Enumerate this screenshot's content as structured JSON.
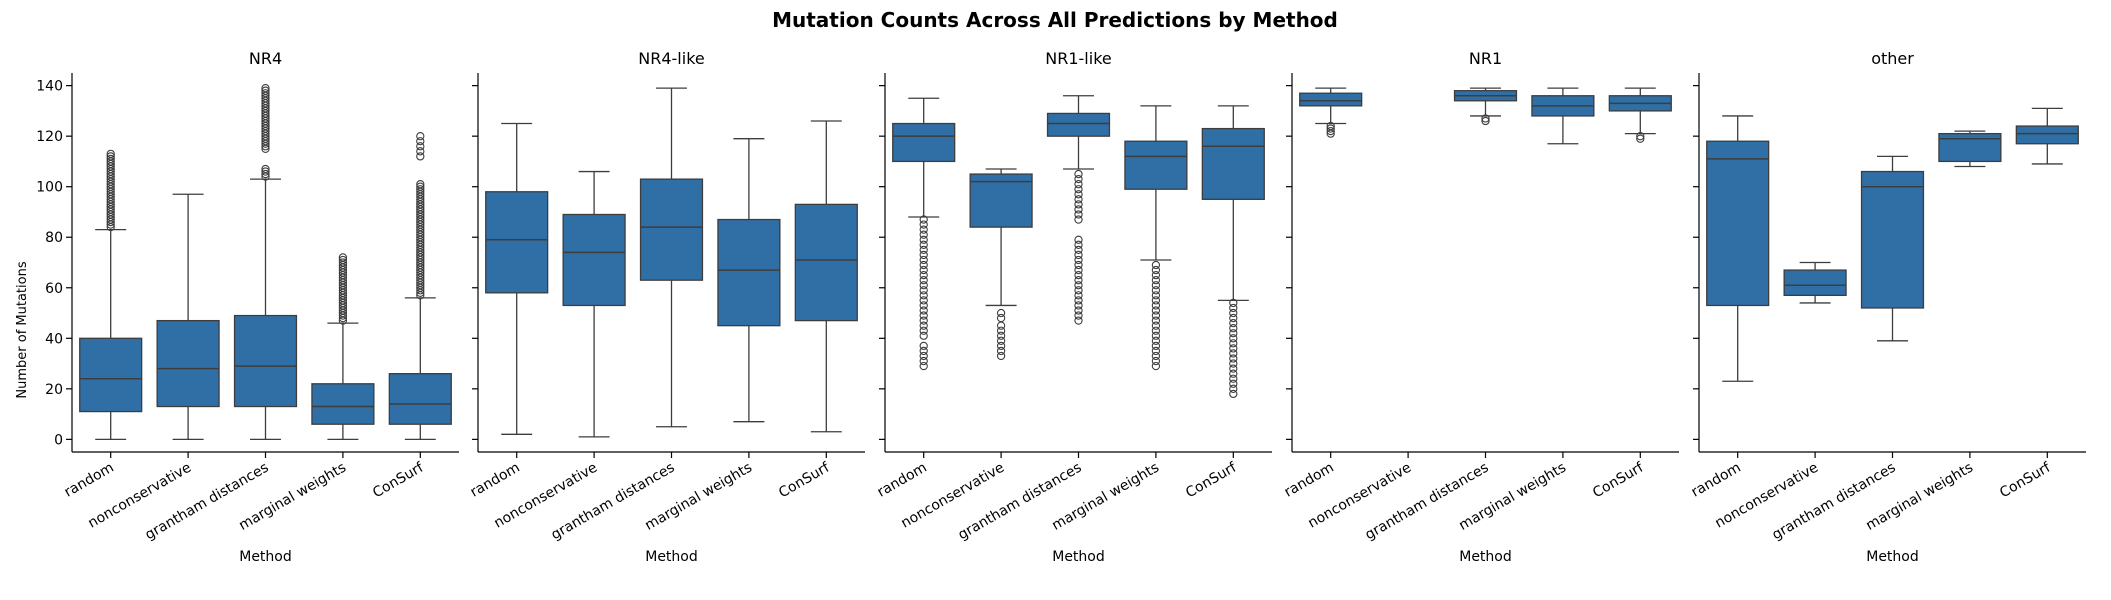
{
  "figure": {
    "title": "Mutation Counts Across All Predictions by Method",
    "ylabel": "Number of Mutations",
    "xlabel": "Method",
    "box_color": "#2f6fa6",
    "line_color": "#3d3d3d"
  },
  "chart_data": [
    {
      "type": "box",
      "title": "NR4",
      "xlabel": "Method",
      "ylabel": "Number of Mutations",
      "categories": [
        "random",
        "nonconservative",
        "grantham distances",
        "marginal weights",
        "ConSurf"
      ],
      "ylim": [
        -5,
        145
      ],
      "yticks": [
        0,
        20,
        40,
        60,
        80,
        100,
        120,
        140
      ],
      "boxes": [
        {
          "whislo": 0,
          "q1": 11,
          "med": 24,
          "q3": 40,
          "whishi": 83,
          "fliers": [
            84,
            85,
            86,
            87,
            88,
            89,
            90,
            91,
            92,
            93,
            94,
            95,
            96,
            97,
            98,
            99,
            100,
            101,
            102,
            103,
            104,
            105,
            106,
            107,
            108,
            109,
            110,
            111,
            112,
            113
          ]
        },
        {
          "whislo": 0,
          "q1": 13,
          "med": 28,
          "q3": 47,
          "whishi": 97,
          "fliers": []
        },
        {
          "whislo": 0,
          "q1": 13,
          "med": 29,
          "q3": 49,
          "whishi": 103,
          "fliers": [
            104,
            105,
            106,
            107,
            115,
            116,
            117,
            118,
            119,
            120,
            121,
            122,
            123,
            124,
            125,
            126,
            127,
            128,
            129,
            130,
            131,
            132,
            133,
            134,
            135,
            136,
            137,
            138,
            139
          ]
        },
        {
          "whislo": 0,
          "q1": 6,
          "med": 13,
          "q3": 22,
          "whishi": 46,
          "fliers": [
            47,
            48,
            49,
            50,
            51,
            52,
            53,
            54,
            55,
            56,
            57,
            58,
            59,
            60,
            61,
            62,
            63,
            64,
            65,
            66,
            67,
            68,
            69,
            70,
            71,
            72
          ]
        },
        {
          "whislo": 0,
          "q1": 6,
          "med": 14,
          "q3": 26,
          "whishi": 56,
          "fliers": [
            57,
            58,
            59,
            60,
            61,
            62,
            63,
            64,
            65,
            66,
            67,
            68,
            69,
            70,
            71,
            72,
            73,
            74,
            75,
            76,
            77,
            78,
            79,
            80,
            81,
            82,
            83,
            84,
            85,
            86,
            87,
            88,
            89,
            90,
            91,
            92,
            93,
            94,
            95,
            96,
            97,
            98,
            99,
            100,
            101,
            112,
            114,
            116,
            118,
            120
          ]
        }
      ]
    },
    {
      "type": "box",
      "title": "NR4-like",
      "xlabel": "Method",
      "categories": [
        "random",
        "nonconservative",
        "grantham distances",
        "marginal weights",
        "ConSurf"
      ],
      "ylim": [
        -5,
        145
      ],
      "yticks": [
        0,
        20,
        40,
        60,
        80,
        100,
        120,
        140
      ],
      "boxes": [
        {
          "whislo": 2,
          "q1": 58,
          "med": 79,
          "q3": 98,
          "whishi": 125,
          "fliers": []
        },
        {
          "whislo": 1,
          "q1": 53,
          "med": 74,
          "q3": 89,
          "whishi": 106,
          "fliers": []
        },
        {
          "whislo": 5,
          "q1": 63,
          "med": 84,
          "q3": 103,
          "whishi": 139,
          "fliers": []
        },
        {
          "whislo": 7,
          "q1": 45,
          "med": 67,
          "q3": 87,
          "whishi": 119,
          "fliers": []
        },
        {
          "whislo": 3,
          "q1": 47,
          "med": 71,
          "q3": 93,
          "whishi": 126,
          "fliers": []
        }
      ]
    },
    {
      "type": "box",
      "title": "NR1-like",
      "xlabel": "Method",
      "categories": [
        "random",
        "nonconservative",
        "grantham distances",
        "marginal weights",
        "ConSurf"
      ],
      "ylim": [
        -5,
        145
      ],
      "yticks": [
        0,
        20,
        40,
        60,
        80,
        100,
        120,
        140
      ],
      "boxes": [
        {
          "whislo": 88,
          "q1": 110,
          "med": 120,
          "q3": 125,
          "whishi": 135,
          "fliers": [
            87,
            85,
            83,
            81,
            79,
            77,
            75,
            73,
            71,
            69,
            67,
            65,
            63,
            61,
            59,
            57,
            55,
            53,
            51,
            49,
            47,
            45,
            43,
            41,
            37,
            35,
            33,
            31,
            29
          ]
        },
        {
          "whislo": 53,
          "q1": 84,
          "med": 102,
          "q3": 105,
          "whishi": 107,
          "fliers": [
            50,
            48,
            45,
            43,
            41,
            39,
            37,
            35,
            33
          ]
        },
        {
          "whislo": 107,
          "q1": 120,
          "med": 125,
          "q3": 129,
          "whishi": 136,
          "fliers": [
            105,
            103,
            101,
            99,
            97,
            95,
            93,
            91,
            89,
            87,
            79,
            77,
            75,
            73,
            71,
            69,
            67,
            65,
            63,
            61,
            59,
            57,
            55,
            53,
            51,
            49,
            47
          ]
        },
        {
          "whislo": 71,
          "q1": 99,
          "med": 112,
          "q3": 118,
          "whishi": 132,
          "fliers": [
            69,
            67,
            65,
            63,
            61,
            59,
            57,
            55,
            53,
            51,
            49,
            47,
            45,
            43,
            41,
            39,
            37,
            35,
            33,
            31,
            29
          ]
        },
        {
          "whislo": 55,
          "q1": 95,
          "med": 116,
          "q3": 123,
          "whishi": 132,
          "fliers": [
            54,
            52,
            50,
            48,
            46,
            44,
            42,
            40,
            38,
            36,
            34,
            32,
            30,
            28,
            26,
            24,
            22,
            20,
            18
          ]
        }
      ]
    },
    {
      "type": "box",
      "title": "NR1",
      "xlabel": "Method",
      "categories": [
        "random",
        "nonconservative",
        "grantham distances",
        "marginal weights",
        "ConSurf"
      ],
      "ylim": [
        -5,
        145
      ],
      "yticks": [
        0,
        20,
        40,
        60,
        80,
        100,
        120,
        140
      ],
      "boxes": [
        {
          "whislo": 125,
          "q1": 132,
          "med": 134,
          "q3": 137,
          "whishi": 139,
          "fliers": [
            124,
            123,
            122,
            121
          ]
        },
        null,
        {
          "whislo": 128,
          "q1": 134,
          "med": 136,
          "q3": 138,
          "whishi": 139,
          "fliers": [
            127,
            126
          ]
        },
        {
          "whislo": 117,
          "q1": 128,
          "med": 132,
          "q3": 136,
          "whishi": 139,
          "fliers": []
        },
        {
          "whislo": 121,
          "q1": 130,
          "med": 133,
          "q3": 136,
          "whishi": 139,
          "fliers": [
            120,
            119
          ]
        }
      ]
    },
    {
      "type": "box",
      "title": "other",
      "xlabel": "Method",
      "categories": [
        "random",
        "nonconservative",
        "grantham distances",
        "marginal weights",
        "ConSurf"
      ],
      "ylim": [
        -5,
        145
      ],
      "yticks": [
        0,
        20,
        40,
        60,
        80,
        100,
        120,
        140
      ],
      "boxes": [
        {
          "whislo": 23,
          "q1": 53,
          "med": 111,
          "q3": 118,
          "whishi": 128,
          "fliers": []
        },
        {
          "whislo": 54,
          "q1": 57,
          "med": 61,
          "q3": 67,
          "whishi": 70,
          "fliers": []
        },
        {
          "whislo": 39,
          "q1": 52,
          "med": 100,
          "q3": 106,
          "whishi": 112,
          "fliers": []
        },
        {
          "whislo": 108,
          "q1": 110,
          "med": 119,
          "q3": 121,
          "whishi": 122,
          "fliers": []
        },
        {
          "whislo": 109,
          "q1": 117,
          "med": 121,
          "q3": 124,
          "whishi": 131,
          "fliers": []
        }
      ]
    }
  ]
}
